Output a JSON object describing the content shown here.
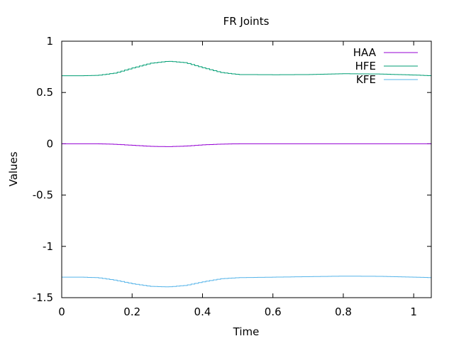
{
  "chart_data": {
    "type": "line",
    "title": "FR Joints",
    "xlabel": "Time",
    "ylabel": "Values",
    "xlim": [
      0,
      1.05
    ],
    "ylim": [
      -1.5,
      1
    ],
    "xticks": [
      0,
      0.2,
      0.4,
      0.6,
      0.8,
      1
    ],
    "xtick_labels": [
      "0",
      "0.2",
      "0.4",
      "0.6",
      "0.8",
      "1"
    ],
    "yticks": [
      -1.5,
      -1,
      -0.5,
      0,
      0.5,
      1
    ],
    "ytick_labels": [
      "-1.5",
      "-1",
      "-0.5",
      "0",
      "0.5",
      "1"
    ],
    "grid": false,
    "legend_position": "top-right",
    "step_plot": true,
    "series": [
      {
        "name": "HAA",
        "color": "#9400d3",
        "x": [
          0,
          0.1,
          0.15,
          0.2,
          0.25,
          0.3,
          0.35,
          0.4,
          0.45,
          0.5,
          0.6,
          0.7,
          0.8,
          0.9,
          1.0,
          1.05
        ],
        "y": [
          0,
          0,
          -0.005,
          -0.015,
          -0.025,
          -0.028,
          -0.022,
          -0.01,
          -0.003,
          0,
          0,
          0,
          0,
          0,
          0,
          0
        ]
      },
      {
        "name": "HFE",
        "color": "#009e73",
        "x": [
          0,
          0.05,
          0.1,
          0.15,
          0.2,
          0.25,
          0.3,
          0.35,
          0.4,
          0.45,
          0.5,
          0.6,
          0.7,
          0.8,
          0.9,
          1.0,
          1.05
        ],
        "y": [
          0.663,
          0.663,
          0.667,
          0.69,
          0.74,
          0.785,
          0.805,
          0.79,
          0.74,
          0.695,
          0.675,
          0.673,
          0.675,
          0.683,
          0.68,
          0.67,
          0.663
        ]
      },
      {
        "name": "KFE",
        "color": "#56b4e9",
        "x": [
          0,
          0.05,
          0.1,
          0.15,
          0.2,
          0.25,
          0.3,
          0.35,
          0.4,
          0.45,
          0.5,
          0.6,
          0.7,
          0.8,
          0.9,
          1.0,
          1.05
        ],
        "y": [
          -1.3,
          -1.3,
          -1.305,
          -1.33,
          -1.365,
          -1.39,
          -1.395,
          -1.38,
          -1.345,
          -1.315,
          -1.305,
          -1.3,
          -1.295,
          -1.29,
          -1.292,
          -1.3,
          -1.305
        ]
      }
    ]
  }
}
